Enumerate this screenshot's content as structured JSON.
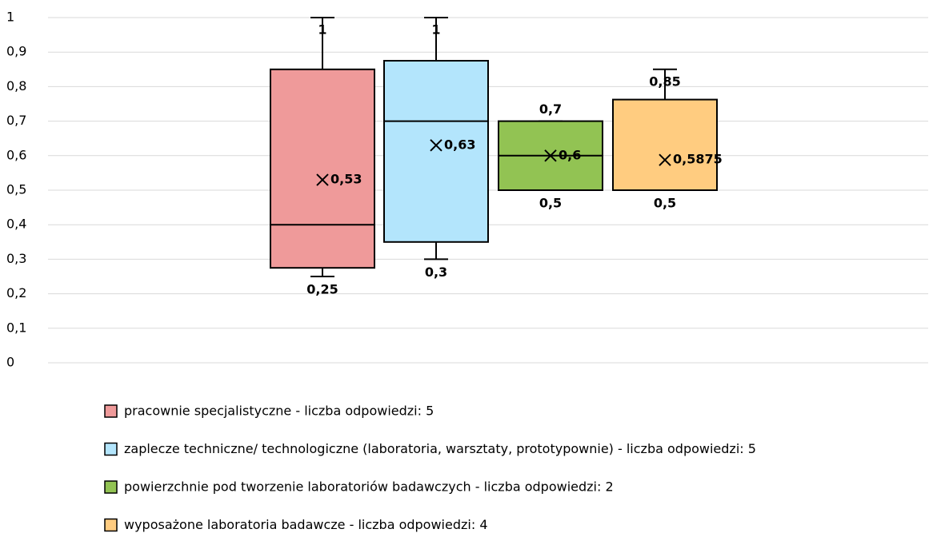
{
  "chart_data": {
    "type": "box",
    "ylim": [
      0,
      1
    ],
    "yticks": [
      0,
      {
        "value": 0.1,
        "label": "0,1"
      },
      {
        "value": 0.2,
        "label": "0,2"
      },
      {
        "value": 0.3,
        "label": "0,3"
      },
      {
        "value": 0.4,
        "label": "0,4"
      },
      {
        "value": 0.5,
        "label": "0,5"
      },
      {
        "value": 0.6,
        "label": "0,6"
      },
      {
        "value": 0.7,
        "label": "0,7"
      },
      {
        "value": 0.8,
        "label": "0,8"
      },
      {
        "value": 0.9,
        "label": "0,9"
      },
      1
    ],
    "grid": true,
    "series": [
      {
        "name": "pracownie specjalistyczne - liczba odpowiedzi: 5",
        "color": "#ef9a9a",
        "min": 0.25,
        "q1": 0.275,
        "median": 0.4,
        "q3": 0.85,
        "max": 1,
        "mean": 0.53,
        "value_labels": {
          "mean": "0,53",
          "min": "0,25"
        }
      },
      {
        "name": "zaplecze techniczne/ technologiczne (laboratoria, warsztaty, prototypownie) - liczba odpowiedzi: 5",
        "color": "#b3e5fc",
        "min": 0.3,
        "q1": 0.35,
        "median": 0.7,
        "q3": 0.875,
        "max": 1,
        "mean": 0.63,
        "value_labels": {
          "mean": "0,63",
          "min": "0,3"
        }
      },
      {
        "name": "powierzchnie pod tworzenie laboratoriów badawczych - liczba odpowiedzi: 2",
        "color": "#92c353",
        "min": 0.5,
        "q1": 0.5,
        "median": 0.6,
        "q3": 0.7,
        "max": 0.7,
        "mean": 0.6,
        "value_labels": {
          "max": "0,7",
          "mean": "0,6",
          "min": "0,5"
        }
      },
      {
        "name": "wyposażone laboratoria badawcze - liczba odpowiedzi: 4",
        "color": "#ffcc80",
        "min": 0.5,
        "q1": 0.5,
        "median": 0.5,
        "q3": 0.7625,
        "max": 0.85,
        "mean": 0.5875,
        "value_labels": {
          "max": "0,85",
          "mean": "0,5875",
          "min": "0,5"
        }
      }
    ]
  }
}
